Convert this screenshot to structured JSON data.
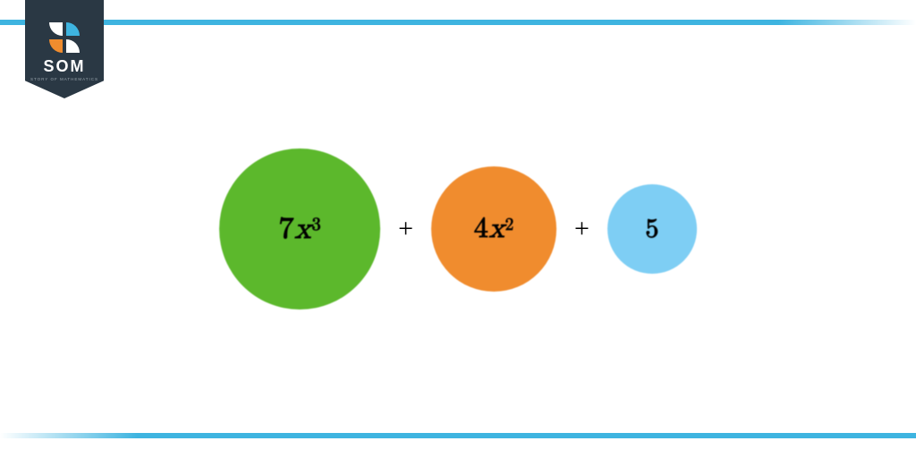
{
  "border_color": "#3eb4e0",
  "background": "#ffffff",
  "logo": {
    "badge_color": "#2a3844",
    "text": "SOM",
    "subtitle": "STORY OF MATHEMATICS",
    "icon_colors": {
      "white": "#ffffff",
      "blue": "#3eb4e0",
      "orange": "#f08c2e"
    }
  },
  "expression": {
    "operators": [
      "+",
      "+"
    ],
    "operator_fontsize": 30,
    "terms": [
      {
        "coefficient": "7",
        "variable": "x",
        "exponent": "3",
        "circle_color": "#5cb82c",
        "circle_diameter": 180,
        "fontsize": 34
      },
      {
        "coefficient": "4",
        "variable": "x",
        "exponent": "2",
        "circle_color": "#f08c2e",
        "circle_diameter": 140,
        "fontsize": 32
      },
      {
        "coefficient": "5",
        "variable": "",
        "exponent": "",
        "circle_color": "#7ecef4",
        "circle_diameter": 100,
        "fontsize": 30
      }
    ]
  }
}
